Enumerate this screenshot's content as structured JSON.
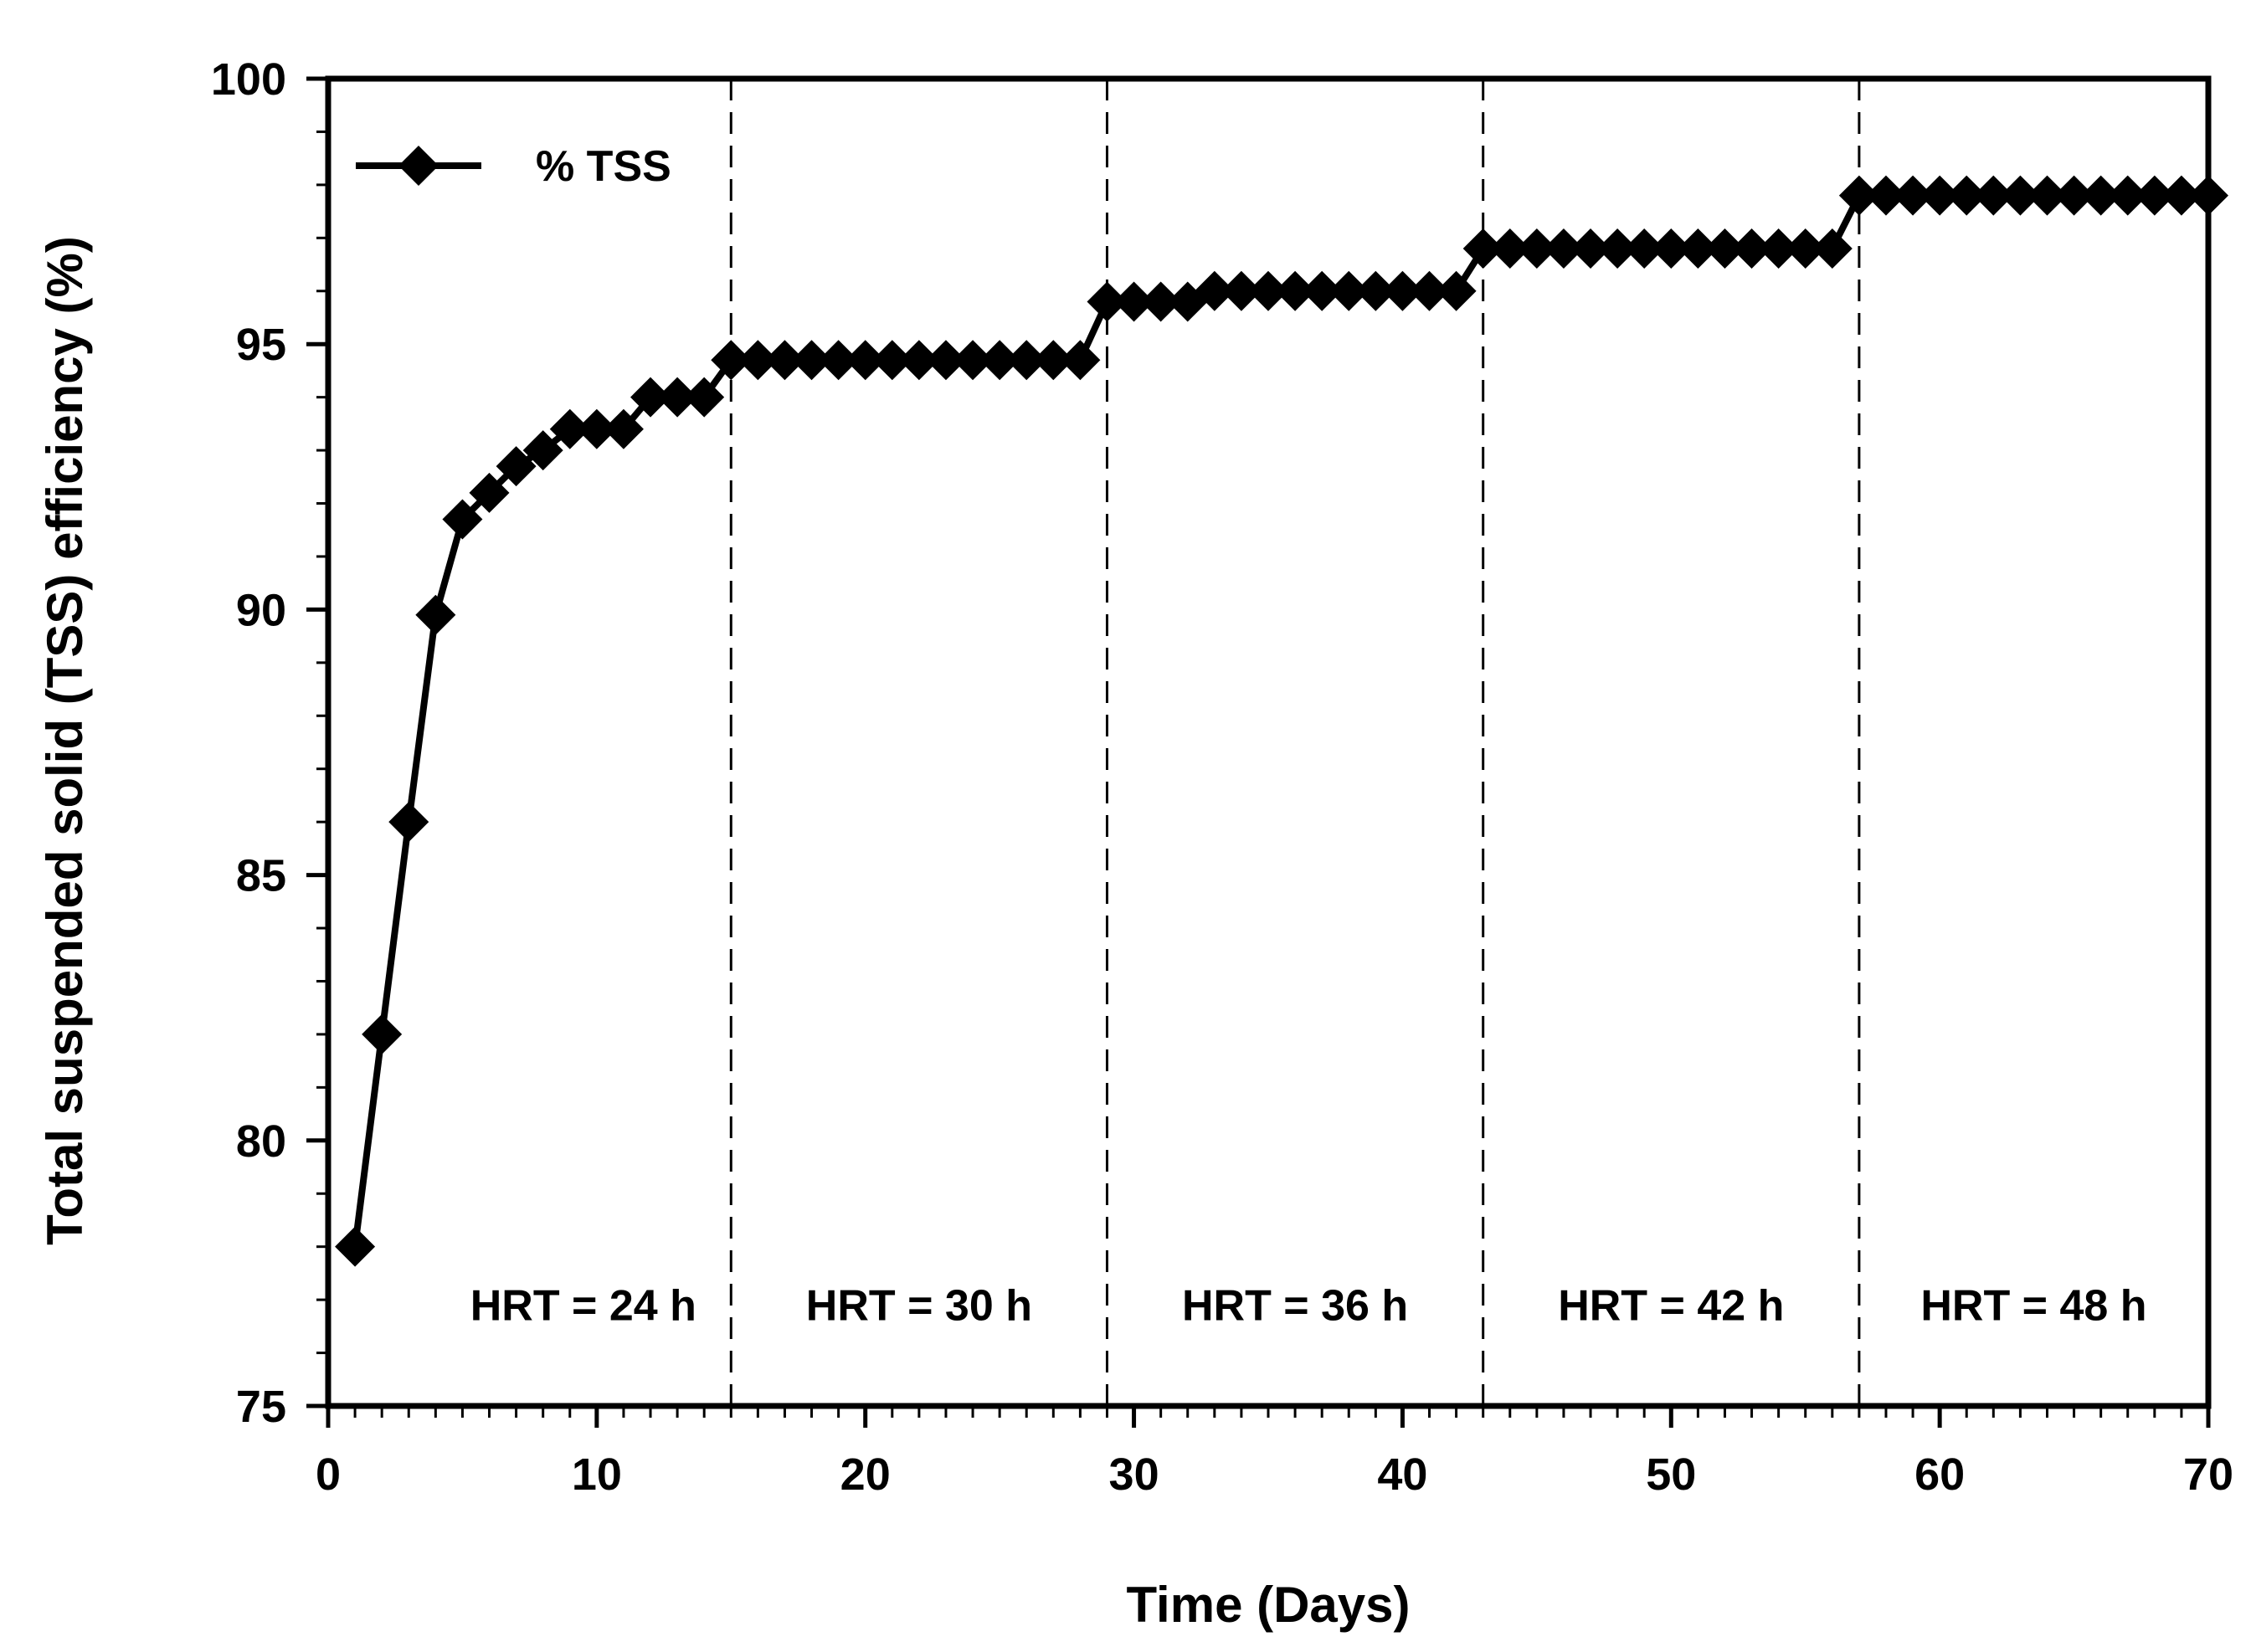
{
  "chart_data": {
    "type": "line",
    "title": "",
    "xlabel": "Time (Days)",
    "ylabel": "Total suspended solid (TSS) efficiency (%)",
    "xlim": [
      0,
      70
    ],
    "ylim": [
      75,
      100
    ],
    "xticks": [
      0,
      10,
      20,
      30,
      40,
      50,
      60,
      70
    ],
    "yticks": [
      75,
      80,
      85,
      90,
      95,
      100
    ],
    "x_minor_step": 1,
    "y_minor_step": 1,
    "legend": {
      "position": "top-left",
      "entries": [
        "% TSS"
      ]
    },
    "series": [
      {
        "name": "% TSS",
        "marker": "diamond",
        "color": "#000000",
        "x": [
          1,
          2,
          3,
          4,
          5,
          6,
          7,
          8,
          9,
          10,
          11,
          12,
          13,
          14,
          15,
          16,
          17,
          18,
          19,
          20,
          21,
          22,
          23,
          24,
          25,
          26,
          27,
          28,
          29,
          30,
          31,
          32,
          33,
          34,
          35,
          36,
          37,
          38,
          39,
          40,
          41,
          42,
          43,
          44,
          45,
          46,
          47,
          48,
          49,
          50,
          51,
          52,
          53,
          54,
          55,
          56,
          57,
          58,
          59,
          60,
          61,
          62,
          63,
          64,
          65,
          66,
          67,
          68,
          69,
          70
        ],
        "y": [
          78.0,
          82.0,
          86.0,
          89.9,
          91.7,
          92.2,
          92.7,
          93.0,
          93.4,
          93.4,
          93.4,
          94.0,
          94.0,
          94.0,
          94.7,
          94.7,
          94.7,
          94.7,
          94.7,
          94.7,
          94.7,
          94.7,
          94.7,
          94.7,
          94.7,
          94.7,
          94.7,
          94.7,
          95.8,
          95.8,
          95.8,
          95.8,
          96.0,
          96.0,
          96.0,
          96.0,
          96.0,
          96.0,
          96.0,
          96.0,
          96.0,
          96.0,
          96.8,
          96.8,
          96.8,
          96.8,
          96.8,
          96.8,
          96.8,
          96.8,
          96.8,
          96.8,
          96.8,
          96.8,
          96.8,
          96.8,
          97.8,
          97.8,
          97.8,
          97.8,
          97.8,
          97.8,
          97.8,
          97.8,
          97.8,
          97.8,
          97.8,
          97.8,
          97.8,
          97.8
        ]
      }
    ],
    "dividers": [
      15,
      29,
      43,
      57
    ],
    "regions": [
      {
        "label": "HRT = 24 h",
        "center_x": 9.5
      },
      {
        "label": "HRT = 30 h",
        "center_x": 22
      },
      {
        "label": "HRT = 36 h",
        "center_x": 36
      },
      {
        "label": "HRT = 42 h",
        "center_x": 50
      },
      {
        "label": "HRT = 48 h",
        "center_x": 63.5
      }
    ],
    "region_label_y": 76.9
  }
}
